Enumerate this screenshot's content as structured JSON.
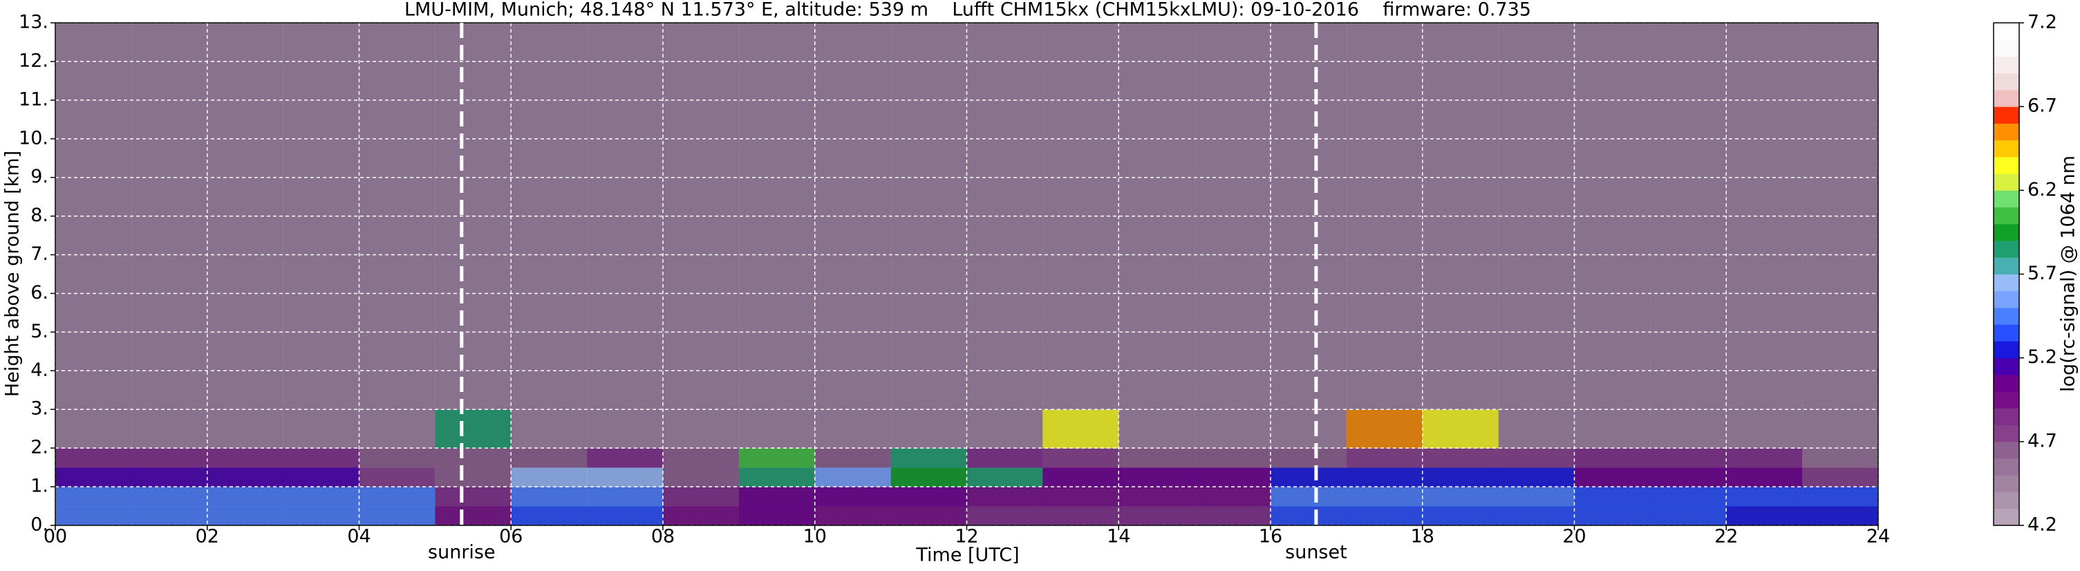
{
  "chart_data": {
    "type": "heatmap",
    "title": "LMU-MIM, Munich; 48.148° N 11.573° E, altitude: 539 m    Lufft CHM15kx (CHM15kxLMU): 09-10-2016    firmware: 0.735",
    "xlabel": "Time [UTC]",
    "ylabel": "Height above ground [km]",
    "xlim": [
      0,
      24
    ],
    "ylim": [
      0,
      13
    ],
    "xticks": [
      {
        "value": 0,
        "label": "00"
      },
      {
        "value": 2,
        "label": "02"
      },
      {
        "value": 4,
        "label": "04"
      },
      {
        "value": 6,
        "label": "06"
      },
      {
        "value": 8,
        "label": "08"
      },
      {
        "value": 10,
        "label": "10"
      },
      {
        "value": 12,
        "label": "12"
      },
      {
        "value": 14,
        "label": "14"
      },
      {
        "value": 16,
        "label": "16"
      },
      {
        "value": 18,
        "label": "18"
      },
      {
        "value": 20,
        "label": "20"
      },
      {
        "value": 22,
        "label": "22"
      },
      {
        "value": 24,
        "label": "24"
      }
    ],
    "yticks": [
      {
        "value": 0,
        "label": "0."
      },
      {
        "value": 1,
        "label": "1."
      },
      {
        "value": 2,
        "label": "2."
      },
      {
        "value": 3,
        "label": "3."
      },
      {
        "value": 4,
        "label": "4."
      },
      {
        "value": 5,
        "label": "5."
      },
      {
        "value": 6,
        "label": "6."
      },
      {
        "value": 7,
        "label": "7."
      },
      {
        "value": 8,
        "label": "8."
      },
      {
        "value": 9,
        "label": "9."
      },
      {
        "value": 10,
        "label": "10."
      },
      {
        "value": 11,
        "label": "11."
      },
      {
        "value": 12,
        "label": "12."
      },
      {
        "value": 13,
        "label": "13."
      }
    ],
    "grid": true,
    "x_edges": [
      0,
      1,
      2,
      3,
      4,
      5,
      6,
      7,
      8,
      9,
      10,
      11,
      12,
      13,
      14,
      15,
      16,
      17,
      18,
      19,
      20,
      21,
      22,
      23,
      24
    ],
    "y_edges": [
      0,
      0.5,
      1,
      1.5,
      2,
      3,
      5,
      13
    ],
    "z": [
      [
        5.4,
        5.4,
        5.4,
        5.4,
        5.4,
        4.9,
        5.3,
        5.3,
        4.9,
        5.0,
        4.9,
        4.9,
        4.8,
        4.8,
        4.8,
        4.8,
        5.3,
        5.3,
        5.3,
        5.3,
        5.3,
        5.3,
        5.2,
        5.2
      ],
      [
        5.4,
        5.4,
        5.4,
        5.4,
        5.4,
        4.8,
        5.4,
        5.4,
        4.8,
        5.0,
        5.0,
        5.0,
        4.9,
        4.9,
        4.9,
        4.9,
        5.4,
        5.4,
        5.4,
        5.4,
        5.3,
        5.3,
        5.3,
        5.3
      ],
      [
        5.1,
        5.1,
        5.1,
        5.1,
        4.7,
        4.6,
        5.6,
        5.6,
        4.6,
        5.8,
        5.5,
        5.9,
        5.8,
        5.0,
        5.0,
        5.0,
        5.2,
        5.2,
        5.2,
        5.2,
        5.0,
        5.0,
        5.0,
        4.7
      ],
      [
        4.8,
        4.8,
        4.8,
        4.8,
        4.6,
        4.6,
        4.6,
        4.8,
        4.6,
        6.0,
        4.6,
        5.8,
        4.8,
        4.7,
        4.6,
        4.6,
        4.6,
        4.7,
        4.7,
        4.7,
        4.8,
        4.8,
        4.8,
        4.5
      ],
      [
        4.4,
        4.4,
        4.4,
        4.4,
        4.4,
        5.8,
        4.4,
        4.4,
        4.4,
        4.4,
        4.4,
        4.4,
        4.4,
        6.3,
        4.4,
        4.4,
        4.4,
        6.5,
        6.3,
        4.4,
        4.4,
        4.4,
        4.4,
        4.4
      ],
      [
        4.4,
        4.4,
        4.4,
        4.4,
        4.4,
        4.4,
        4.4,
        4.4,
        4.4,
        4.4,
        4.4,
        4.4,
        4.4,
        4.4,
        4.4,
        4.4,
        4.4,
        4.4,
        4.4,
        4.4,
        4.4,
        4.4,
        4.4,
        4.4
      ],
      [
        4.4,
        4.4,
        4.4,
        4.4,
        4.4,
        4.4,
        4.4,
        4.4,
        4.4,
        4.4,
        4.4,
        4.4,
        4.4,
        4.4,
        4.4,
        4.4,
        4.4,
        4.4,
        4.4,
        4.4,
        4.4,
        4.4,
        4.4,
        4.4
      ]
    ],
    "markers": [
      {
        "label": "sunrise",
        "x": 5.35
      },
      {
        "label": "sunset",
        "x": 16.6
      }
    ],
    "colorbar": {
      "label": "log(rc-signal) @ 1064 nm",
      "levels": [
        4.2,
        4.3,
        4.4,
        4.5,
        4.6,
        4.7,
        4.8,
        4.9,
        5.0,
        5.1,
        5.2,
        5.3,
        5.4,
        5.5,
        5.6,
        5.7,
        5.8,
        5.9,
        6.0,
        6.1,
        6.2,
        6.3,
        6.4,
        6.5,
        6.6,
        6.7,
        6.8,
        6.9,
        7.0,
        7.1,
        7.2
      ],
      "colors": [
        "#b8a4b8",
        "#ac94ac",
        "#a084a0",
        "#987498",
        "#8e6290",
        "#88408c",
        "#80308a",
        "#780f88",
        "#6e0090",
        "#4a00b0",
        "#1818e0",
        "#2850ff",
        "#4a80ff",
        "#78a4ff",
        "#98bcf8",
        "#48b0b0",
        "#20a070",
        "#10a028",
        "#40c040",
        "#70e070",
        "#d8f040",
        "#ffff20",
        "#ffc800",
        "#ff9000",
        "#ff3000",
        "#f0c0c0",
        "#eedcdc",
        "#f6ecec",
        "#fafafa",
        "#ffffff"
      ],
      "ticks": [
        4.2,
        4.7,
        5.2,
        5.7,
        6.2,
        6.7,
        7.2
      ]
    }
  }
}
